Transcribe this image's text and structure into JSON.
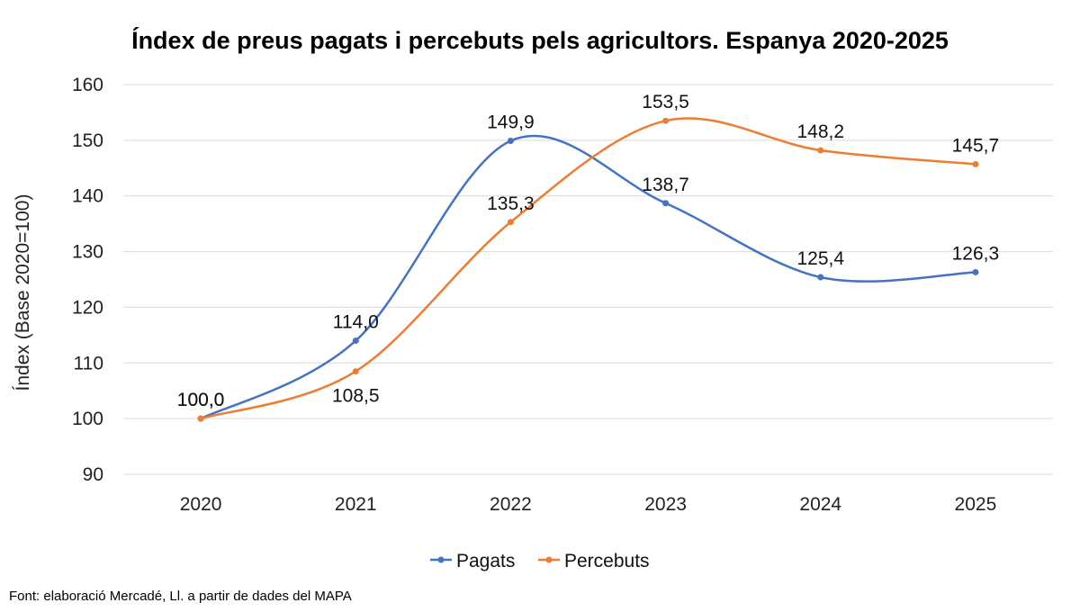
{
  "chart_data": {
    "type": "line",
    "title": "Índex de preus pagats i percebuts pels agricultors. Espanya 2020-2025",
    "ylabel": "Índex (Base 2020=100)",
    "xlabel": "",
    "categories": [
      "2020",
      "2021",
      "2022",
      "2023",
      "2024",
      "2025"
    ],
    "ylim": [
      90,
      160
    ],
    "yticks": [
      90,
      100,
      110,
      120,
      130,
      140,
      150,
      160
    ],
    "grid": true,
    "smooth": true,
    "legend_position": "bottom",
    "series": [
      {
        "name": "Pagats",
        "color": "#4472C4",
        "values": [
          100.0,
          114.0,
          149.9,
          138.7,
          125.4,
          126.3
        ],
        "labels": [
          "100,0",
          "114,0",
          "149,9",
          "138,7",
          "125,4",
          "126,3"
        ]
      },
      {
        "name": "Percebuts",
        "color": "#ED7D31",
        "values": [
          100.0,
          108.5,
          135.3,
          153.5,
          148.2,
          145.7
        ],
        "labels": [
          "100,0",
          "108,5",
          "135,3",
          "153,5",
          "148,2",
          "145,7"
        ]
      }
    ]
  },
  "source_note": "Font: elaboració Mercadé, Ll. a partir de dades del MAPA"
}
